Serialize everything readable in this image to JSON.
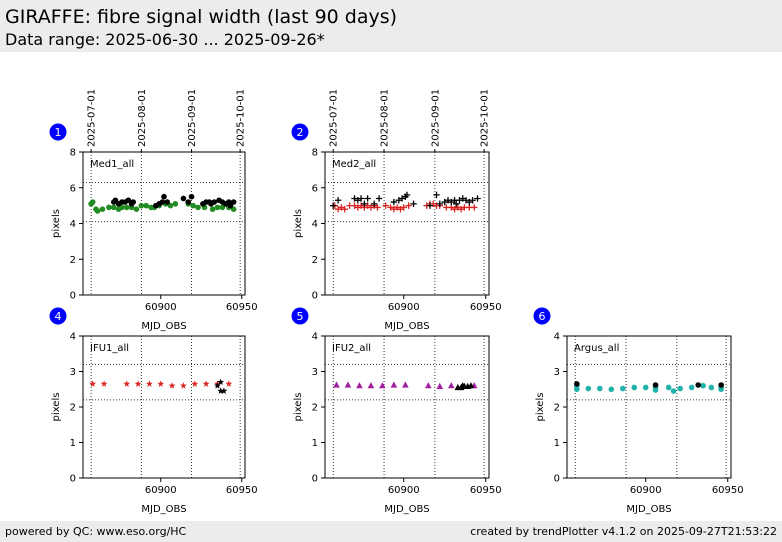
{
  "header": {
    "title": "GIRAFFE: fibre signal width (last 90 days)",
    "subtitle": "Data range: 2025-06-30 ... 2025-09-26*"
  },
  "footer": {
    "left": "powered by QC: www.eso.org/HC",
    "right": "created by trendPlotter v4.1.2 on 2025-09-27T21:53:22"
  },
  "colors": {
    "header_bg": "#ececec",
    "badge": "#0000ff",
    "green": "#228b22",
    "red": "#dd2222",
    "black": "#000000",
    "purple": "#a020a0",
    "teal": "#20b2aa"
  },
  "date_axis": {
    "ticks": [
      {
        "label": "2025-07-01",
        "mjd": 60857
      },
      {
        "label": "2025-08-01",
        "mjd": 60888
      },
      {
        "label": "2025-09-01",
        "mjd": 60919
      },
      {
        "label": "2025-10-01",
        "mjd": 60949
      }
    ]
  },
  "chart_data": [
    {
      "type": "scatter",
      "panel": "1",
      "label": "Med1_all",
      "xlabel": "MJD_OBS",
      "ylabel": "pixels",
      "xlim": [
        60852,
        60952
      ],
      "ylim": [
        0,
        8
      ],
      "xticks": [
        60900,
        60950
      ],
      "yticks": [
        0,
        2,
        4,
        6,
        8
      ],
      "hlines": [
        4.1,
        6.3
      ],
      "show_date_axis": true,
      "series": [
        {
          "marker": "circle",
          "color": "#228b22",
          "points": [
            [
              60857,
              5.1
            ],
            [
              60858,
              5.2
            ],
            [
              60860,
              4.8
            ],
            [
              60861,
              4.7
            ],
            [
              60864,
              4.8
            ],
            [
              60868,
              4.9
            ],
            [
              60871,
              4.9
            ],
            [
              60874,
              4.8
            ],
            [
              60876,
              4.9
            ],
            [
              60879,
              4.9
            ],
            [
              60882,
              4.9
            ],
            [
              60885,
              4.8
            ],
            [
              60888,
              5.0
            ],
            [
              60891,
              5.0
            ],
            [
              60894,
              4.9
            ],
            [
              60896,
              4.9
            ],
            [
              60899,
              5.0
            ],
            [
              60903,
              5.1
            ],
            [
              60906,
              5.0
            ],
            [
              60909,
              5.1
            ],
            [
              60917,
              5.1
            ],
            [
              60920,
              5.0
            ],
            [
              60923,
              4.9
            ],
            [
              60927,
              4.9
            ],
            [
              60932,
              4.8
            ],
            [
              60935,
              4.9
            ],
            [
              60938,
              4.9
            ],
            [
              60942,
              4.9
            ],
            [
              60945,
              4.8
            ]
          ]
        },
        {
          "marker": "circle",
          "color": "#000000",
          "points": [
            [
              60871,
              5.2
            ],
            [
              60872,
              5.3
            ],
            [
              60874,
              5.1
            ],
            [
              60876,
              5.2
            ],
            [
              60878,
              5.2
            ],
            [
              60880,
              5.3
            ],
            [
              60882,
              5.1
            ],
            [
              60883,
              5.2
            ],
            [
              60897,
              5.0
            ],
            [
              60899,
              5.1
            ],
            [
              60901,
              5.2
            ],
            [
              60902,
              5.5
            ],
            [
              60904,
              5.2
            ],
            [
              60914,
              5.4
            ],
            [
              60917,
              5.2
            ],
            [
              60919,
              5.5
            ],
            [
              60926,
              5.1
            ],
            [
              60928,
              5.2
            ],
            [
              60930,
              5.2
            ],
            [
              60931,
              5.1
            ],
            [
              60933,
              5.2
            ],
            [
              60936,
              5.3
            ],
            [
              60938,
              5.2
            ],
            [
              60940,
              5.1
            ],
            [
              60942,
              5.2
            ],
            [
              60943,
              5.0
            ],
            [
              60945,
              5.2
            ]
          ]
        }
      ]
    },
    {
      "type": "scatter",
      "panel": "2",
      "label": "Med2_all",
      "xlabel": "MJD_OBS",
      "ylabel": "pixels",
      "xlim": [
        60852,
        60952
      ],
      "ylim": [
        0,
        8
      ],
      "xticks": [
        60900,
        60950
      ],
      "yticks": [
        0,
        2,
        4,
        6,
        8
      ],
      "hlines": [
        4.1,
        6.3
      ],
      "show_date_axis": true,
      "series": [
        {
          "marker": "plus",
          "color": "#dd2222",
          "points": [
            [
              60858,
              5.0
            ],
            [
              60860,
              4.8
            ],
            [
              60862,
              4.9
            ],
            [
              60864,
              4.8
            ],
            [
              60867,
              5.0
            ],
            [
              60870,
              5.0
            ],
            [
              60872,
              4.9
            ],
            [
              60874,
              5.0
            ],
            [
              60876,
              4.9
            ],
            [
              60878,
              5.0
            ],
            [
              60880,
              4.9
            ],
            [
              60882,
              5.0
            ],
            [
              60884,
              4.9
            ],
            [
              60889,
              5.0
            ],
            [
              60892,
              4.9
            ],
            [
              60894,
              4.8
            ],
            [
              60896,
              4.9
            ],
            [
              60898,
              4.8
            ],
            [
              60900,
              4.9
            ],
            [
              60903,
              5.0
            ],
            [
              60914,
              5.0
            ],
            [
              60916,
              5.1
            ],
            [
              60918,
              5.1
            ],
            [
              60920,
              5.0
            ],
            [
              60922,
              5.0
            ],
            [
              60926,
              4.9
            ],
            [
              60929,
              4.9
            ],
            [
              60931,
              4.8
            ],
            [
              60933,
              4.9
            ],
            [
              60935,
              4.8
            ],
            [
              60937,
              4.9
            ],
            [
              60940,
              4.9
            ],
            [
              60943,
              4.9
            ]
          ]
        },
        {
          "marker": "plus",
          "color": "#000000",
          "points": [
            [
              60857,
              5.0
            ],
            [
              60860,
              5.3
            ],
            [
              60870,
              5.4
            ],
            [
              60872,
              5.3
            ],
            [
              60874,
              5.4
            ],
            [
              60876,
              5.1
            ],
            [
              60878,
              5.4
            ],
            [
              60882,
              5.1
            ],
            [
              60885,
              5.4
            ],
            [
              60894,
              5.2
            ],
            [
              60897,
              5.3
            ],
            [
              60899,
              5.4
            ],
            [
              60901,
              5.5
            ],
            [
              60902,
              5.6
            ],
            [
              60906,
              5.1
            ],
            [
              60916,
              5.0
            ],
            [
              60920,
              5.6
            ],
            [
              60922,
              5.1
            ],
            [
              60925,
              5.2
            ],
            [
              60927,
              5.3
            ],
            [
              60929,
              5.2
            ],
            [
              60931,
              5.3
            ],
            [
              60932,
              5.1
            ],
            [
              60934,
              5.3
            ],
            [
              60936,
              5.4
            ],
            [
              60938,
              5.3
            ],
            [
              60940,
              5.2
            ],
            [
              60942,
              5.3
            ],
            [
              60945,
              5.4
            ]
          ]
        }
      ]
    },
    {
      "type": "scatter",
      "panel": "4",
      "label": "IFU1_all",
      "xlabel": "MJD_OBS",
      "ylabel": "pixels",
      "xlim": [
        60852,
        60952
      ],
      "ylim": [
        0,
        4
      ],
      "xticks": [
        60900,
        60950
      ],
      "yticks": [
        0,
        1,
        2,
        3,
        4
      ],
      "hlines": [
        2.2,
        3.2
      ],
      "show_date_axis": false,
      "series": [
        {
          "marker": "star",
          "color": "#dd2222",
          "points": [
            [
              60858,
              2.65
            ],
            [
              60865,
              2.65
            ],
            [
              60879,
              2.65
            ],
            [
              60886,
              2.65
            ],
            [
              60893,
              2.65
            ],
            [
              60900,
              2.65
            ],
            [
              60907,
              2.6
            ],
            [
              60914,
              2.6
            ],
            [
              60921,
              2.65
            ],
            [
              60928,
              2.65
            ],
            [
              60935,
              2.65
            ],
            [
              60942,
              2.65
            ]
          ]
        },
        {
          "marker": "star",
          "color": "#000000",
          "points": [
            [
              60937,
              2.45
            ],
            [
              60939,
              2.45
            ],
            [
              60935,
              2.6
            ],
            [
              60937,
              2.7
            ]
          ]
        }
      ]
    },
    {
      "type": "scatter",
      "panel": "5",
      "label": "IFU2_all",
      "xlabel": "MJD_OBS",
      "ylabel": "pixels",
      "xlim": [
        60852,
        60952
      ],
      "ylim": [
        0,
        4
      ],
      "xticks": [
        60900,
        60950
      ],
      "yticks": [
        0,
        1,
        2,
        3,
        4
      ],
      "hlines": [
        2.2,
        3.2
      ],
      "show_date_axis": false,
      "series": [
        {
          "marker": "triangle",
          "color": "#a020a0",
          "points": [
            [
              60859,
              2.62
            ],
            [
              60866,
              2.62
            ],
            [
              60873,
              2.6
            ],
            [
              60880,
              2.6
            ],
            [
              60887,
              2.6
            ],
            [
              60894,
              2.62
            ],
            [
              60901,
              2.62
            ],
            [
              60915,
              2.6
            ],
            [
              60922,
              2.58
            ],
            [
              60929,
              2.6
            ],
            [
              60943,
              2.6
            ]
          ]
        },
        {
          "marker": "triangle",
          "color": "#000000",
          "points": [
            [
              60933,
              2.55
            ],
            [
              60935,
              2.55
            ],
            [
              60937,
              2.58
            ],
            [
              60939,
              2.58
            ],
            [
              60936,
              2.6
            ],
            [
              60941,
              2.6
            ]
          ]
        }
      ]
    },
    {
      "type": "scatter",
      "panel": "6",
      "label": "Argus_all",
      "xlabel": "MJD_OBS",
      "ylabel": "pixels",
      "xlim": [
        60852,
        60952
      ],
      "ylim": [
        0,
        4
      ],
      "xticks": [
        60900,
        60950
      ],
      "yticks": [
        0,
        1,
        2,
        3,
        4
      ],
      "hlines": [
        2.2,
        3.2
      ],
      "show_date_axis": false,
      "series": [
        {
          "marker": "circle",
          "color": "#20b2aa",
          "points": [
            [
              60858,
              2.5
            ],
            [
              60858,
              2.6
            ],
            [
              60865,
              2.52
            ],
            [
              60872,
              2.52
            ],
            [
              60879,
              2.5
            ],
            [
              60886,
              2.52
            ],
            [
              60893,
              2.55
            ],
            [
              60900,
              2.55
            ],
            [
              60906,
              2.48
            ],
            [
              60906,
              2.55
            ],
            [
              60914,
              2.55
            ],
            [
              60917,
              2.45
            ],
            [
              60921,
              2.52
            ],
            [
              60928,
              2.55
            ],
            [
              60935,
              2.6
            ],
            [
              60940,
              2.55
            ],
            [
              60946,
              2.5
            ],
            [
              60946,
              2.55
            ]
          ]
        },
        {
          "marker": "circle",
          "color": "#000000",
          "points": [
            [
              60858,
              2.65
            ],
            [
              60906,
              2.62
            ],
            [
              60932,
              2.62
            ],
            [
              60946,
              2.62
            ]
          ]
        }
      ]
    }
  ]
}
